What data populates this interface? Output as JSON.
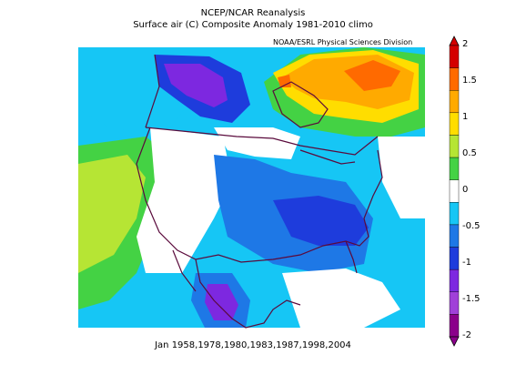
{
  "header": {
    "title": "NCEP/NCAR Reanalysis",
    "subtitle": "Surface air (C) Composite Anomaly 1981-2010 climo",
    "credit": "NOAA/ESRL Physical Sciences Division"
  },
  "footer": {
    "caption": "Jan 1958,1978,1980,1983,1987,1998,2004"
  },
  "colorbar": {
    "labels": [
      "2",
      "1.5",
      "1",
      "0.5",
      "0",
      "-0.5",
      "-1",
      "-1.5",
      "-2"
    ],
    "colors": [
      "#d40000",
      "#ff6a00",
      "#ffaa00",
      "#ffdd00",
      "#b6e534",
      "#44d244",
      "#ffffff",
      "#16c6f5",
      "#1e78e6",
      "#1e3cdc",
      "#7d28e0",
      "#a040d8",
      "#8b008b"
    ]
  },
  "map_colors": {
    "white": "#ffffff",
    "cyan": "#16c6f5",
    "blue": "#1e78e6",
    "darkblue": "#1e3cdc",
    "purple": "#7d28e0",
    "lightgreen": "#b6e534",
    "green": "#44d244",
    "yellow": "#ffdd00",
    "orange": "#ffaa00",
    "red": "#ff6a00",
    "border": "#5a0a3c"
  }
}
